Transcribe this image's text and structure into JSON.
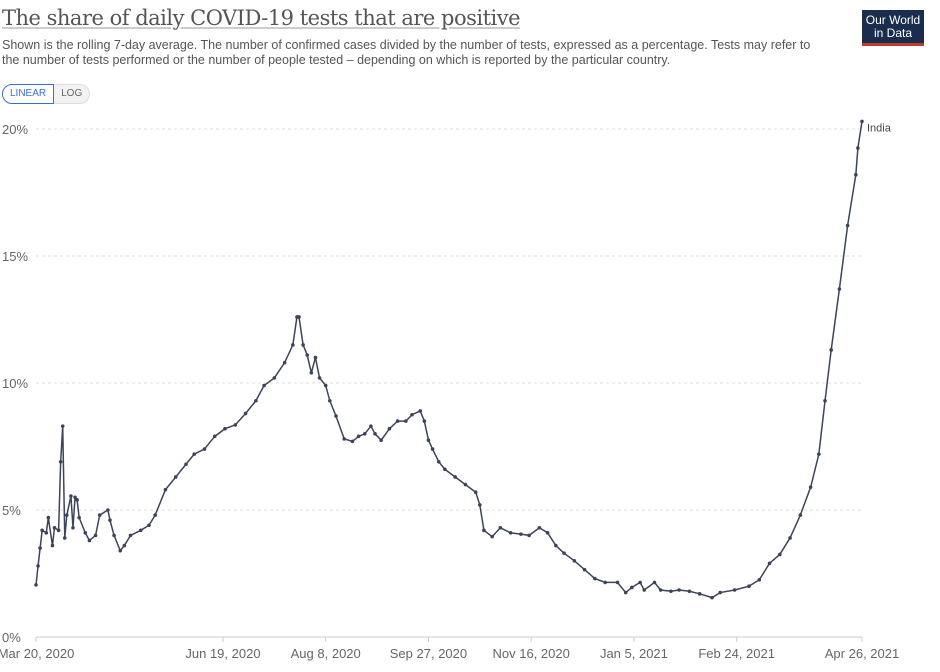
{
  "header": {
    "title": "The share of daily COVID-19 tests that are positive",
    "subtitle": "Shown is the rolling 7-day average. The number of confirmed cases divided by the number of tests, expressed as a percentage. Tests may refer to the number of tests performed or the number of people tested – depending on which is reported by the particular country.",
    "logo": "Our World in Data"
  },
  "controls": {
    "linear": "LINEAR",
    "log": "LOG"
  },
  "colors": {
    "line": "#3d4459",
    "grid": "#ddd",
    "accent": "#3b6de0"
  },
  "chart_data": {
    "type": "line",
    "title": "The share of daily COVID-19 tests that are positive",
    "x_unit": "days since Mar 20, 2020",
    "xlim": [
      0,
      402
    ],
    "ylim": [
      0,
      20
    ],
    "grid": true,
    "y_ticks": [
      {
        "v": 0,
        "label": "0%"
      },
      {
        "v": 5,
        "label": "5%"
      },
      {
        "v": 10,
        "label": "10%"
      },
      {
        "v": 15,
        "label": "15%"
      },
      {
        "v": 20,
        "label": "20%"
      }
    ],
    "x_ticks": [
      {
        "v": 0,
        "label": "Mar 20, 2020"
      },
      {
        "v": 91,
        "label": "Jun 19, 2020"
      },
      {
        "v": 141,
        "label": "Aug 8, 2020"
      },
      {
        "v": 191,
        "label": "Sep 27, 2020"
      },
      {
        "v": 241,
        "label": "Nov 16, 2020"
      },
      {
        "v": 291,
        "label": "Jan 5, 2021"
      },
      {
        "v": 341,
        "label": "Feb 24, 2021"
      },
      {
        "v": 402,
        "label": "Apr 26, 2021"
      }
    ],
    "series": [
      {
        "name": "India",
        "points": [
          [
            0,
            2.05
          ],
          [
            1,
            2.8
          ],
          [
            2,
            3.5
          ],
          [
            3,
            4.2
          ],
          [
            5,
            4.1
          ],
          [
            6,
            4.7
          ],
          [
            8,
            3.6
          ],
          [
            9,
            4.3
          ],
          [
            11,
            4.2
          ],
          [
            12,
            6.9
          ],
          [
            13,
            8.3
          ],
          [
            14,
            3.9
          ],
          [
            15,
            4.8
          ],
          [
            17,
            5.55
          ],
          [
            18,
            4.3
          ],
          [
            19,
            5.5
          ],
          [
            20,
            5.4
          ],
          [
            21,
            4.7
          ],
          [
            24,
            4.1
          ],
          [
            26,
            3.8
          ],
          [
            29,
            4.0
          ],
          [
            31,
            4.8
          ],
          [
            35,
            5.0
          ],
          [
            36,
            4.6
          ],
          [
            38,
            4.0
          ],
          [
            41,
            3.4
          ],
          [
            43,
            3.6
          ],
          [
            46,
            4.0
          ],
          [
            51,
            4.2
          ],
          [
            55,
            4.4
          ],
          [
            58,
            4.8
          ],
          [
            63,
            5.8
          ],
          [
            68,
            6.3
          ],
          [
            73,
            6.8
          ],
          [
            77,
            7.2
          ],
          [
            82,
            7.4
          ],
          [
            87,
            7.9
          ],
          [
            92,
            8.2
          ],
          [
            97,
            8.35
          ],
          [
            102,
            8.8
          ],
          [
            107,
            9.3
          ],
          [
            111,
            9.9
          ],
          [
            116,
            10.2
          ],
          [
            121,
            10.8
          ],
          [
            125,
            11.5
          ],
          [
            127,
            12.6
          ],
          [
            128,
            12.6
          ],
          [
            130,
            11.5
          ],
          [
            132,
            11.1
          ],
          [
            134,
            10.4
          ],
          [
            136,
            11.0
          ],
          [
            138,
            10.2
          ],
          [
            141,
            9.9
          ],
          [
            143,
            9.3
          ],
          [
            146,
            8.7
          ],
          [
            150,
            7.8
          ],
          [
            154,
            7.7
          ],
          [
            157,
            7.9
          ],
          [
            160,
            8.0
          ],
          [
            163,
            8.3
          ],
          [
            165,
            8.0
          ],
          [
            168,
            7.75
          ],
          [
            172,
            8.2
          ],
          [
            176,
            8.5
          ],
          [
            180,
            8.5
          ],
          [
            183,
            8.75
          ],
          [
            187,
            8.9
          ],
          [
            189,
            8.5
          ],
          [
            191,
            7.75
          ],
          [
            193,
            7.4
          ],
          [
            196,
            6.9
          ],
          [
            199,
            6.6
          ],
          [
            204,
            6.3
          ],
          [
            209,
            6.0
          ],
          [
            214,
            5.7
          ],
          [
            216,
            5.2
          ],
          [
            218,
            4.2
          ],
          [
            222,
            3.95
          ],
          [
            226,
            4.3
          ],
          [
            231,
            4.1
          ],
          [
            236,
            4.05
          ],
          [
            240,
            4.0
          ],
          [
            245,
            4.3
          ],
          [
            249,
            4.1
          ],
          [
            253,
            3.6
          ],
          [
            257,
            3.3
          ],
          [
            262,
            3.0
          ],
          [
            267,
            2.65
          ],
          [
            272,
            2.3
          ],
          [
            277,
            2.15
          ],
          [
            283,
            2.15
          ],
          [
            287,
            1.75
          ],
          [
            290,
            1.95
          ],
          [
            294,
            2.15
          ],
          [
            296,
            1.85
          ],
          [
            301,
            2.15
          ],
          [
            304,
            1.85
          ],
          [
            309,
            1.8
          ],
          [
            313,
            1.85
          ],
          [
            318,
            1.8
          ],
          [
            323,
            1.7
          ],
          [
            329,
            1.55
          ],
          [
            333,
            1.75
          ],
          [
            340,
            1.85
          ],
          [
            347,
            2.0
          ],
          [
            352,
            2.25
          ],
          [
            357,
            2.9
          ],
          [
            362,
            3.25
          ],
          [
            367,
            3.9
          ],
          [
            372,
            4.8
          ],
          [
            377,
            5.9
          ],
          [
            381,
            7.2
          ],
          [
            384,
            9.3
          ],
          [
            387,
            11.3
          ],
          [
            391,
            13.7
          ],
          [
            395,
            16.2
          ],
          [
            399,
            18.2
          ],
          [
            400,
            19.25
          ],
          [
            402,
            20.3
          ]
        ]
      }
    ]
  }
}
